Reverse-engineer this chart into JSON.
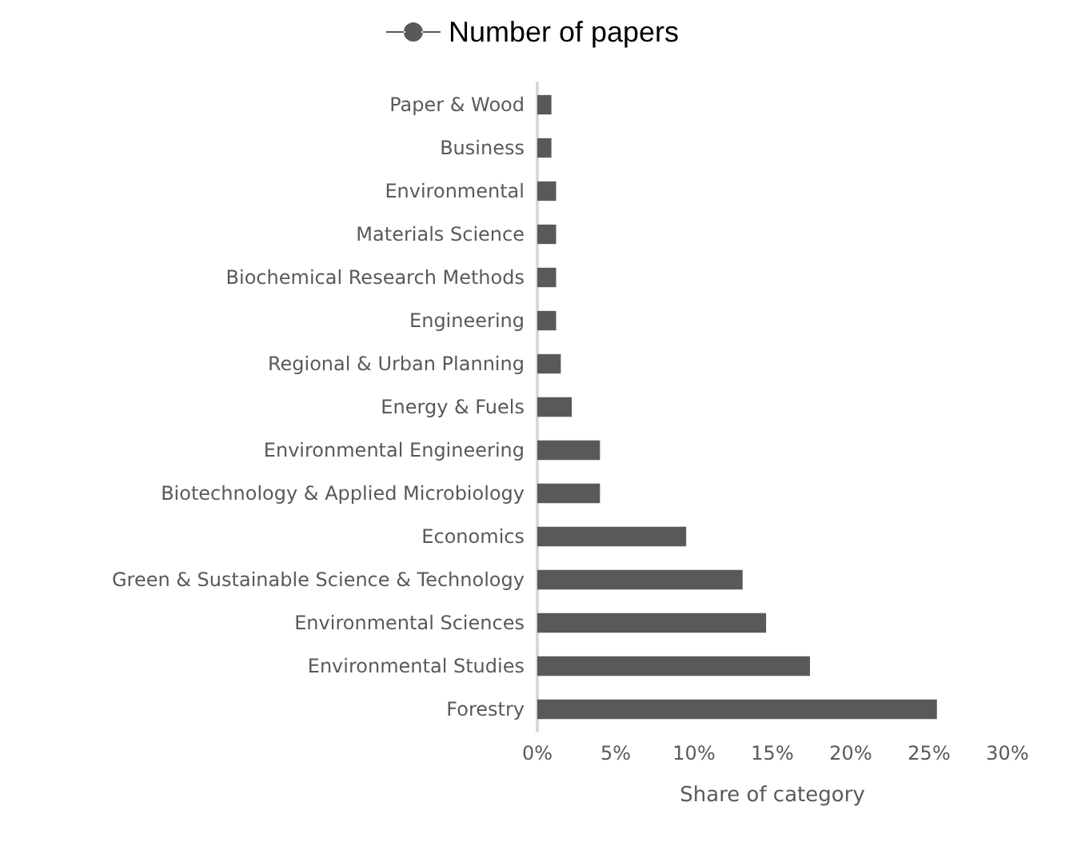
{
  "chart_data": {
    "type": "bar",
    "orientation": "horizontal",
    "xlabel": "Share of category",
    "categories": [
      "Paper & Wood",
      "Business",
      "Environmental",
      "Materials Science",
      "Biochemical Research Methods",
      "Engineering",
      "Regional & Urban Planning",
      "Energy & Fuels",
      "Environmental Engineering",
      "Biotechnology & Applied Microbiology",
      "Economics",
      "Green & Sustainable Science & Technology",
      "Environmental Sciences",
      "Environmental Studies",
      "Forestry"
    ],
    "series": [
      {
        "name": "Number of papers",
        "color": "#595959",
        "values": [
          0.9,
          0.9,
          1.2,
          1.2,
          1.2,
          1.2,
          1.5,
          2.2,
          4.0,
          4.0,
          9.5,
          13.1,
          14.6,
          17.4,
          25.5
        ]
      }
    ],
    "xlim": [
      0,
      30
    ],
    "xticks": [
      {
        "value": 0,
        "label": "0%"
      },
      {
        "value": 5,
        "label": "5%"
      },
      {
        "value": 10,
        "label": "10%"
      },
      {
        "value": 15,
        "label": "15%"
      },
      {
        "value": 20,
        "label": "20%"
      },
      {
        "value": 25,
        "label": "25%"
      },
      {
        "value": 30,
        "label": "30%"
      }
    ],
    "legend": "top",
    "grid": false
  }
}
